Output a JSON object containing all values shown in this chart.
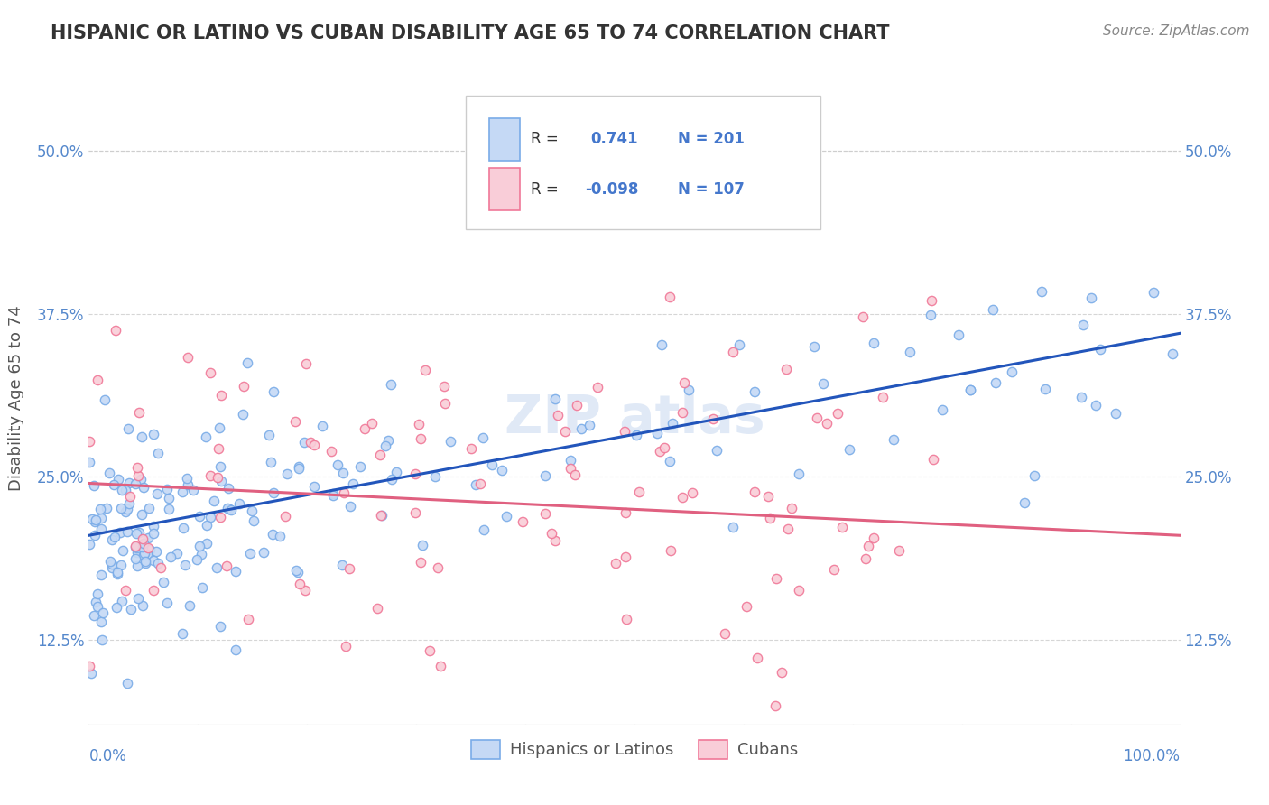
{
  "title": "HISPANIC OR LATINO VS CUBAN DISABILITY AGE 65 TO 74 CORRELATION CHART",
  "source": "Source: ZipAtlas.com",
  "ylabel": "Disability Age 65 to 74",
  "xmin": 0.0,
  "xmax": 1.0,
  "ymin": 0.06,
  "ymax": 0.56,
  "yticks": [
    0.125,
    0.25,
    0.375,
    0.5
  ],
  "ytick_labels": [
    "12.5%",
    "25.0%",
    "37.5%",
    "50.0%"
  ],
  "r_hispanic": 0.741,
  "n_hispanic": 201,
  "r_cuban": -0.098,
  "n_cuban": 107,
  "blue_scatter_face": "#c5d9f5",
  "blue_scatter_edge": "#7aace8",
  "pink_scatter_face": "#f9cdd8",
  "pink_scatter_edge": "#f07898",
  "blue_line_color": "#2255bb",
  "pink_line_color": "#e06080",
  "watermark_color": "#c8d8f0",
  "legend_label_1": "Hispanics or Latinos",
  "legend_label_2": "Cubans",
  "background_color": "#ffffff",
  "grid_color": "#cccccc",
  "title_color": "#333333",
  "axis_label_color": "#555555",
  "tick_label_color": "#5588cc",
  "legend_text_color": "#4477cc",
  "source_color": "#888888"
}
